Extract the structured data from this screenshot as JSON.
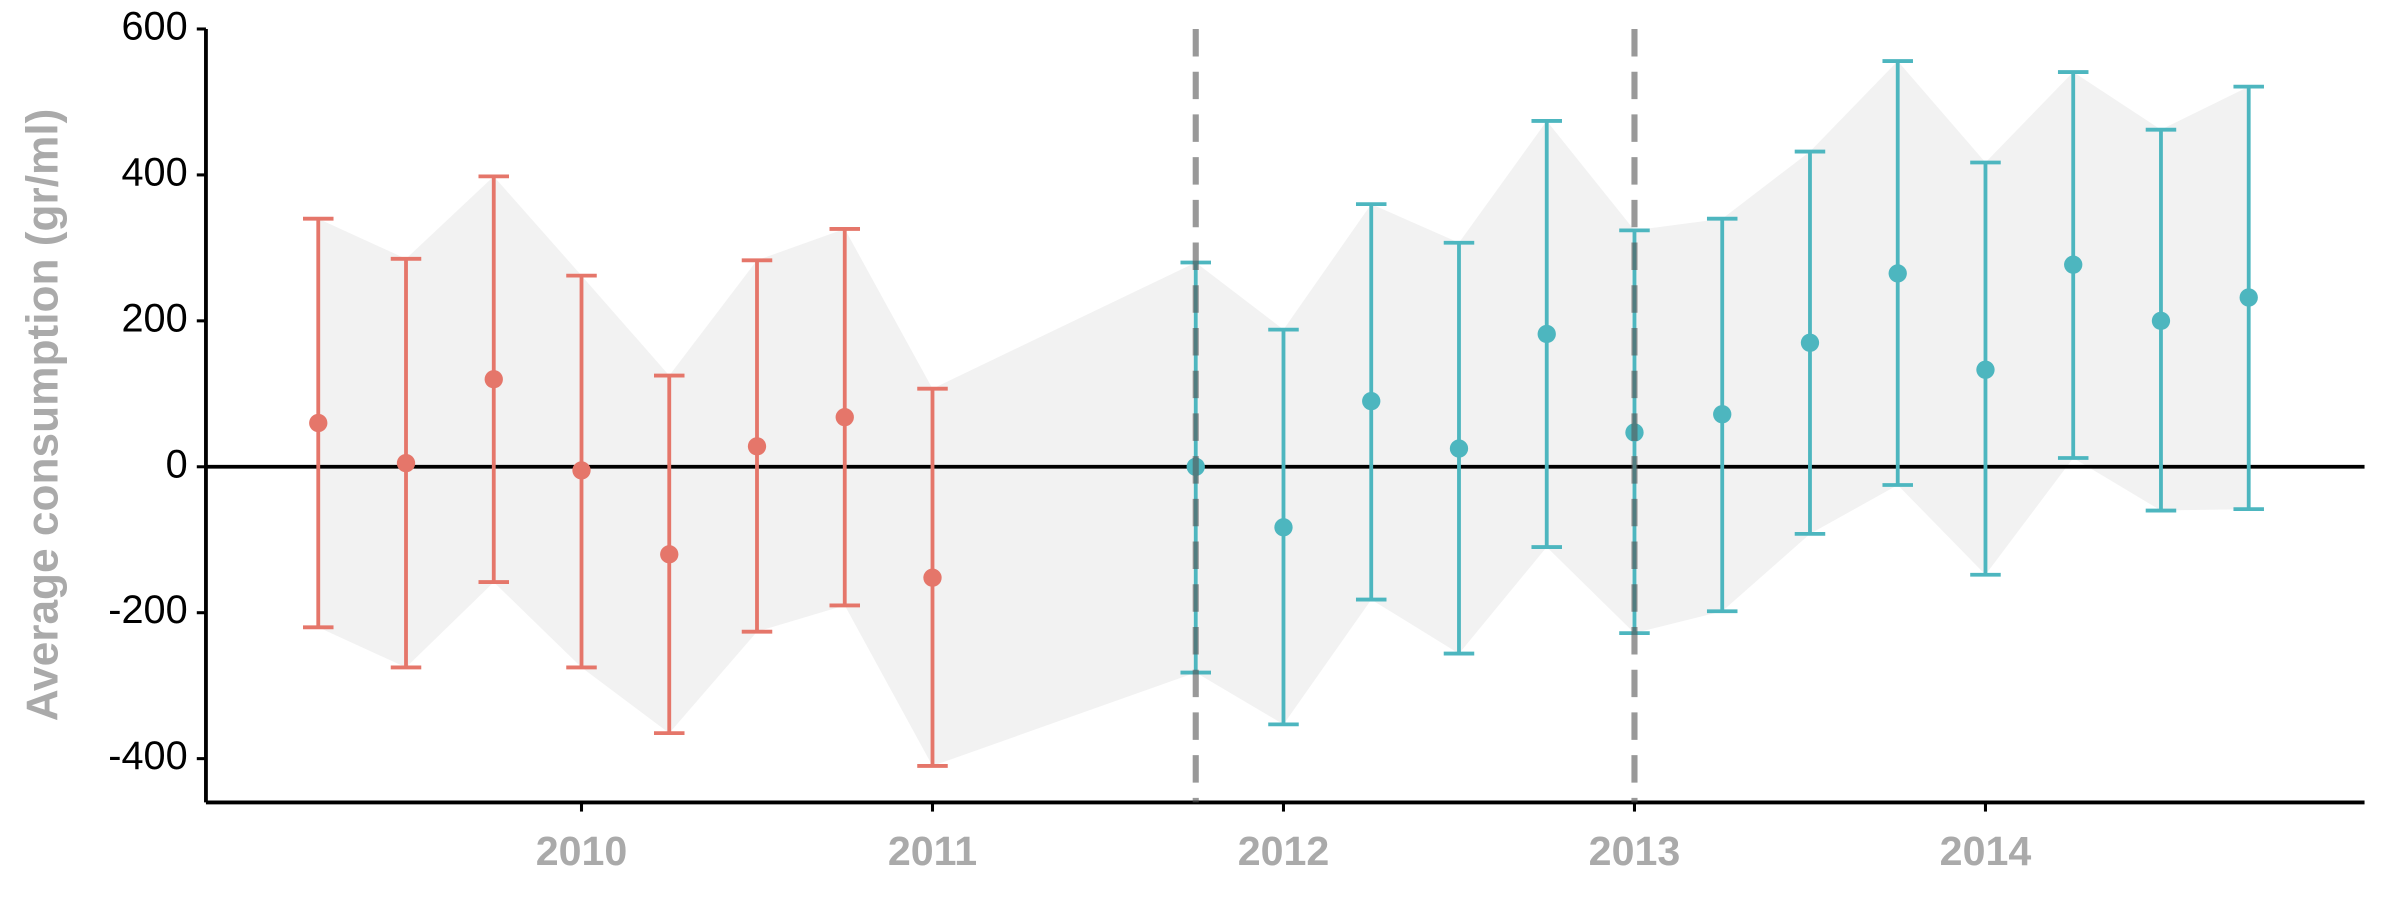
{
  "chart_data": {
    "type": "errorbar",
    "y_label": "Average consumption (gr/ml)",
    "xlim": [
      2008.93,
      2015.08
    ],
    "xticks": [
      2010,
      2011,
      2012,
      2013,
      2014
    ],
    "ylim": [
      -460,
      600
    ],
    "yticks": [
      -400,
      -200,
      0,
      200,
      400,
      600
    ],
    "hline": 0,
    "vlines": [
      2011.75,
      2013
    ],
    "ribbon_color": "#f2f2f2",
    "series": [
      {
        "color": "#e5766a",
        "x": [
          2009.25,
          2009.5,
          2009.75,
          2010,
          2010.25,
          2010.5,
          2010.75,
          2011
        ],
        "values": [
          60,
          5,
          120,
          -5,
          -120,
          28,
          68,
          -152
        ],
        "lower": [
          -220,
          -275,
          -158,
          -275,
          -365,
          -226,
          -190,
          -410
        ],
        "upper": [
          340,
          285,
          398,
          262,
          125,
          283,
          326,
          107
        ]
      },
      {
        "color": "#4db6bf",
        "x": [
          2011.75,
          2012,
          2012.25,
          2012.5,
          2012.75,
          2013,
          2013.25,
          2013.5,
          2013.75,
          2014,
          2014.25,
          2014.5,
          2014.75
        ],
        "values": [
          0,
          -83,
          90,
          25,
          182,
          47,
          72,
          170,
          265,
          133,
          277,
          200,
          232
        ],
        "lower": [
          -282,
          -353,
          -182,
          -256,
          -110,
          -228,
          -198,
          -92,
          -25,
          -148,
          12,
          -60,
          -58
        ],
        "upper": [
          280,
          188,
          360,
          307,
          474,
          324,
          340,
          432,
          556,
          417,
          541,
          462,
          521
        ]
      }
    ]
  }
}
